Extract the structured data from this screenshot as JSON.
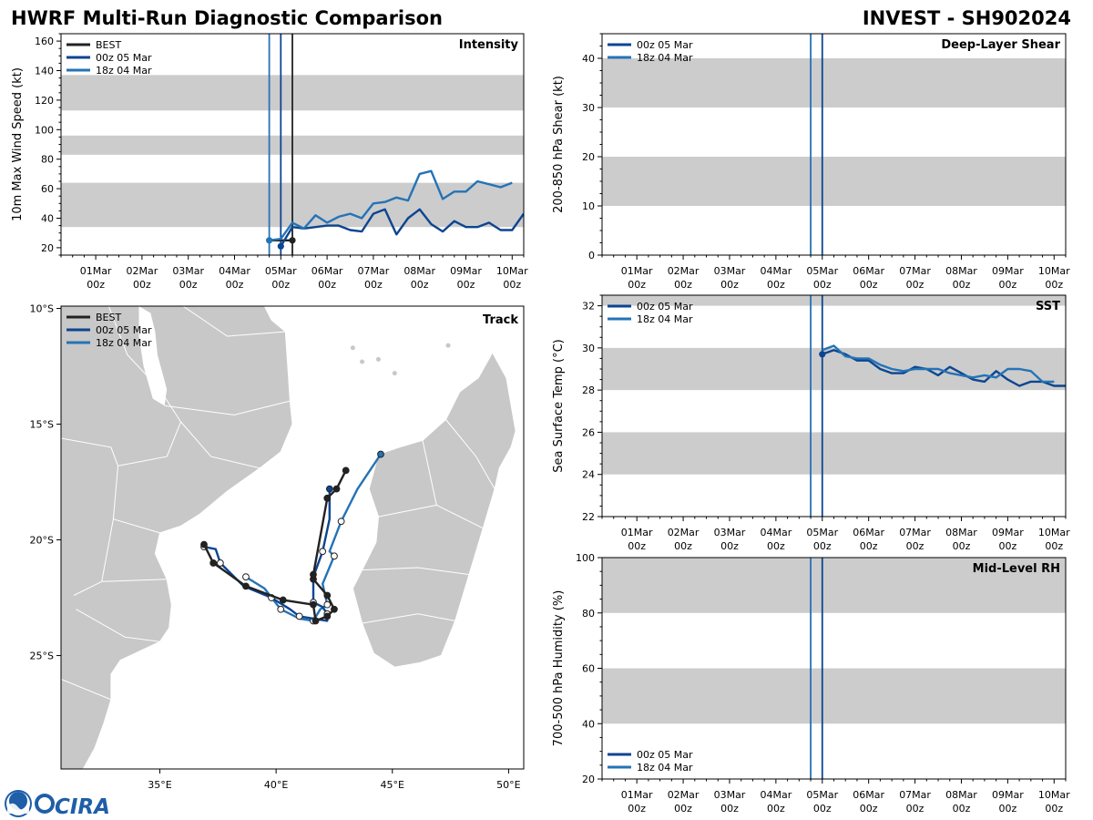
{
  "header": {
    "title_left": "HWRF Multi-Run Diagnostic Comparison",
    "title_right": "INVEST - SH902024",
    "logo_text": "CIRA"
  },
  "colors": {
    "best": "#222222",
    "run_00z": "#0c4591",
    "run_18z": "#2473b6",
    "band": "#cccccc",
    "land": "#c8c8c8"
  },
  "chart_data": [
    {
      "id": "intensity",
      "type": "line",
      "title": "Intensity",
      "ylabel": "10m Max Wind Speed (kt)",
      "xlim": [
        -0.75,
        9.25
      ],
      "ylim": [
        15,
        165
      ],
      "yticks": [
        20,
        40,
        60,
        80,
        100,
        120,
        140,
        160
      ],
      "xtick_labels": [
        [
          "01Mar",
          "00z"
        ],
        [
          "02Mar",
          "00z"
        ],
        [
          "03Mar",
          "00z"
        ],
        [
          "04Mar",
          "00z"
        ],
        [
          "05Mar",
          "00z"
        ],
        [
          "06Mar",
          "00z"
        ],
        [
          "07Mar",
          "00z"
        ],
        [
          "08Mar",
          "00z"
        ],
        [
          "09Mar",
          "00z"
        ],
        [
          "10Mar",
          "00z"
        ]
      ],
      "bands": [
        [
          34,
          64
        ],
        [
          83,
          96
        ],
        [
          113,
          137
        ]
      ],
      "vlines": [
        {
          "x": 3.75,
          "series": "18z 04 Mar"
        },
        {
          "x": 4.0,
          "series": "00z 05 Mar"
        },
        {
          "x": 4.25,
          "series": "BEST"
        }
      ],
      "legend": [
        "BEST",
        "00z 05 Mar",
        "18z 04 Mar"
      ],
      "series": [
        {
          "name": "BEST",
          "x": [
            3.75,
            4.0,
            4.25
          ],
          "y": [
            25,
            25,
            25
          ],
          "start_marker": false,
          "end_marker": true
        },
        {
          "name": "00z 05 Mar",
          "x": [
            4.0,
            4.25,
            4.5,
            4.75,
            5.0,
            5.25,
            5.5,
            5.75,
            6.0,
            6.25,
            6.5,
            6.75,
            7.0,
            7.25,
            7.5,
            7.75,
            8.0,
            8.25,
            8.5,
            8.75,
            9.0,
            9.25
          ],
          "y": [
            21,
            34,
            33,
            34,
            35,
            35,
            32,
            31,
            43,
            46,
            29,
            40,
            46,
            36,
            31,
            38,
            34,
            34,
            37,
            32,
            32,
            43
          ],
          "start_marker": true
        },
        {
          "name": "18z 04 Mar",
          "x": [
            3.75,
            4.0,
            4.25,
            4.5,
            4.75,
            5.0,
            5.25,
            5.5,
            5.75,
            6.0,
            6.25,
            6.5,
            6.75,
            7.0,
            7.25,
            7.5,
            7.75,
            8.0,
            8.25,
            8.5,
            8.75,
            9.0
          ],
          "y": [
            25,
            26,
            37,
            33,
            42,
            37,
            41,
            43,
            40,
            50,
            51,
            54,
            52,
            70,
            72,
            53,
            58,
            58,
            65,
            63,
            61,
            64
          ],
          "start_marker": true
        }
      ]
    },
    {
      "id": "shear",
      "type": "line",
      "title": "Deep-Layer Shear",
      "ylabel": "200-850 hPa Shear (kt)",
      "xlim": [
        -0.75,
        9.25
      ],
      "ylim": [
        0,
        45
      ],
      "yticks": [
        0,
        10,
        20,
        30,
        40
      ],
      "xtick_labels": [
        [
          "01Mar",
          "00z"
        ],
        [
          "02Mar",
          "00z"
        ],
        [
          "03Mar",
          "00z"
        ],
        [
          "04Mar",
          "00z"
        ],
        [
          "05Mar",
          "00z"
        ],
        [
          "06Mar",
          "00z"
        ],
        [
          "07Mar",
          "00z"
        ],
        [
          "08Mar",
          "00z"
        ],
        [
          "09Mar",
          "00z"
        ],
        [
          "10Mar",
          "00z"
        ]
      ],
      "bands": [
        [
          10,
          20
        ],
        [
          30,
          40
        ]
      ],
      "vlines": [
        {
          "x": 3.75,
          "series": "18z 04 Mar"
        },
        {
          "x": 4.0,
          "series": "00z 05 Mar"
        }
      ],
      "legend": [
        "00z 05 Mar",
        "18z 04 Mar"
      ],
      "series": []
    },
    {
      "id": "sst",
      "type": "line",
      "title": "SST",
      "ylabel": "Sea Surface Temp (°C)",
      "xlim": [
        -0.75,
        9.25
      ],
      "ylim": [
        22,
        32.5
      ],
      "yticks": [
        22,
        24,
        26,
        28,
        30,
        32
      ],
      "xtick_labels": [
        [
          "01Mar",
          "00z"
        ],
        [
          "02Mar",
          "00z"
        ],
        [
          "03Mar",
          "00z"
        ],
        [
          "04Mar",
          "00z"
        ],
        [
          "05Mar",
          "00z"
        ],
        [
          "06Mar",
          "00z"
        ],
        [
          "07Mar",
          "00z"
        ],
        [
          "08Mar",
          "00z"
        ],
        [
          "09Mar",
          "00z"
        ],
        [
          "10Mar",
          "00z"
        ]
      ],
      "bands": [
        [
          24,
          26
        ],
        [
          28,
          30
        ],
        [
          32,
          34
        ]
      ],
      "vlines": [
        {
          "x": 3.75,
          "series": "18z 04 Mar"
        },
        {
          "x": 4.0,
          "series": "00z 05 Mar"
        }
      ],
      "legend": [
        "00z 05 Mar",
        "18z 04 Mar"
      ],
      "series": [
        {
          "name": "00z 05 Mar",
          "x": [
            4.0,
            4.25,
            4.5,
            4.75,
            5.0,
            5.25,
            5.5,
            5.75,
            6.0,
            6.25,
            6.5,
            6.75,
            7.0,
            7.25,
            7.5,
            7.75,
            8.0,
            8.25,
            8.5,
            8.75,
            9.0,
            9.25
          ],
          "y": [
            29.7,
            29.9,
            29.7,
            29.4,
            29.4,
            29.0,
            28.8,
            28.8,
            29.1,
            29.0,
            28.7,
            29.1,
            28.8,
            28.5,
            28.4,
            28.9,
            28.5,
            28.2,
            28.4,
            28.4,
            28.2,
            28.2
          ],
          "start_marker": true
        },
        {
          "name": "18z 04 Mar",
          "x": [
            4.0,
            4.25,
            4.5,
            4.75,
            5.0,
            5.25,
            5.5,
            5.75,
            6.0,
            6.25,
            6.5,
            6.75,
            7.0,
            7.25,
            7.5,
            7.75,
            8.0,
            8.25,
            8.5,
            8.75,
            9.0
          ],
          "y": [
            29.9,
            30.1,
            29.6,
            29.5,
            29.5,
            29.2,
            29.0,
            28.9,
            29.0,
            29.0,
            29.0,
            28.8,
            28.7,
            28.6,
            28.7,
            28.6,
            29.0,
            29.0,
            28.9,
            28.4,
            28.4
          ],
          "start_marker": false
        }
      ]
    },
    {
      "id": "rh",
      "type": "line",
      "title": "Mid-Level RH",
      "ylabel": "700-500 hPa Humidity (%)",
      "xlim": [
        -0.75,
        9.25
      ],
      "ylim": [
        20,
        100
      ],
      "yticks": [
        20,
        40,
        60,
        80,
        100
      ],
      "xtick_labels": [
        [
          "01Mar",
          "00z"
        ],
        [
          "02Mar",
          "00z"
        ],
        [
          "03Mar",
          "00z"
        ],
        [
          "04Mar",
          "00z"
        ],
        [
          "05Mar",
          "00z"
        ],
        [
          "06Mar",
          "00z"
        ],
        [
          "07Mar",
          "00z"
        ],
        [
          "08Mar",
          "00z"
        ],
        [
          "09Mar",
          "00z"
        ],
        [
          "10Mar",
          "00z"
        ]
      ],
      "bands": [
        [
          40,
          60
        ],
        [
          80,
          100
        ]
      ],
      "vlines": [
        {
          "x": 3.75,
          "series": "18z 04 Mar"
        },
        {
          "x": 4.0,
          "series": "00z 05 Mar"
        }
      ],
      "legend": [
        "00z 05 Mar",
        "18z 04 Mar"
      ],
      "series": []
    },
    {
      "id": "track",
      "type": "scatter",
      "title": "Track",
      "xlim": [
        30.75,
        50.65
      ],
      "ylim": [
        -29.9,
        -9.9
      ],
      "lon_ticks": [
        35,
        40,
        45,
        50
      ],
      "lon_labels": [
        "35°E",
        "40°E",
        "45°E",
        "50°E"
      ],
      "lat_ticks": [
        -10,
        -15,
        -20,
        -25
      ],
      "lat_labels": [
        "10°S",
        "15°S",
        "20°S",
        "25°S"
      ],
      "legend": [
        "BEST",
        "00z 05 Mar",
        "18z 04 Mar"
      ],
      "series": [
        {
          "name": "BEST",
          "lon": [
            43.0,
            42.6,
            42.2,
            41.6,
            41.6,
            42.2,
            42.5,
            42.2,
            41.7,
            41.6,
            40.3,
            38.7,
            37.3,
            36.9
          ],
          "lat": [
            -17.0,
            -17.8,
            -18.2,
            -21.5,
            -21.7,
            -22.4,
            -23.0,
            -23.3,
            -23.5,
            -22.8,
            -22.6,
            -22.0,
            -21.0,
            -20.2
          ],
          "start_marker": true
        },
        {
          "name": "00z 05 Mar",
          "lon": [
            42.3,
            42.3,
            42.0,
            41.6,
            41.6,
            42.0,
            42.2,
            42.2,
            41.0,
            40.6,
            39.8,
            38.6,
            37.6,
            37.4,
            36.9
          ],
          "lat": [
            -17.8,
            -19.1,
            -20.5,
            -21.6,
            -22.7,
            -22.9,
            -23.2,
            -23.5,
            -23.3,
            -23.0,
            -22.5,
            -22.0,
            -21.0,
            -20.4,
            -20.3
          ],
          "start_marker": true
        },
        {
          "name": "18z 04 Mar",
          "lon": [
            44.5,
            43.5,
            42.8,
            42.3,
            42.5,
            42.0,
            42.2,
            41.9,
            41.6,
            41.0,
            40.2,
            39.5,
            38.7
          ],
          "lat": [
            -16.3,
            -17.8,
            -19.2,
            -20.5,
            -20.7,
            -21.9,
            -22.8,
            -23.0,
            -23.5,
            -23.4,
            -23.0,
            -22.1,
            -21.6
          ],
          "start_marker": true
        }
      ]
    }
  ]
}
